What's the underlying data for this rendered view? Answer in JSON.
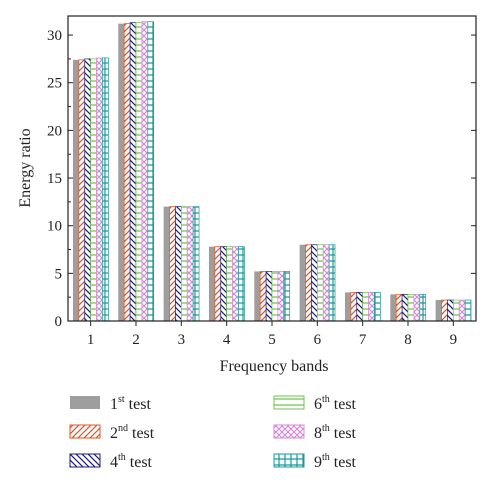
{
  "chart_data": {
    "type": "bar",
    "xlabel": "Frequency bands",
    "ylabel": "Energy ratio",
    "ylim": [
      0,
      32
    ],
    "yticks": [
      0,
      5,
      10,
      15,
      20,
      25,
      30
    ],
    "categories": [
      "1",
      "2",
      "3",
      "4",
      "5",
      "6",
      "7",
      "8",
      "9"
    ],
    "grid": false,
    "legend_position": "bottom, two columns",
    "series": [
      {
        "name": "1st test",
        "ordinal": "1",
        "suffix": "st",
        "color": "#9e9e9e",
        "pattern": "solid",
        "values": [
          27.4,
          31.2,
          12.0,
          7.8,
          5.2,
          8.0,
          3.0,
          2.8,
          2.2
        ]
      },
      {
        "name": "2nd test",
        "ordinal": "2",
        "suffix": "nd",
        "color": "#e8501e",
        "pattern": "diagonal-forward",
        "values": [
          27.4,
          31.2,
          12.0,
          7.8,
          5.2,
          8.0,
          3.0,
          2.8,
          2.2
        ]
      },
      {
        "name": "4th test",
        "ordinal": "4",
        "suffix": "th",
        "color": "#1c1c7a",
        "pattern": "diagonal-backward",
        "values": [
          27.5,
          31.3,
          12.0,
          7.8,
          5.2,
          8.0,
          3.0,
          2.8,
          2.2
        ]
      },
      {
        "name": "6th test",
        "ordinal": "6",
        "suffix": "th",
        "color": "#6ec04a",
        "pattern": "horizontal",
        "values": [
          27.5,
          31.3,
          12.0,
          7.8,
          5.2,
          8.0,
          3.0,
          2.8,
          2.2
        ]
      },
      {
        "name": "8th test",
        "ordinal": "8",
        "suffix": "th",
        "color": "#d68ad6",
        "pattern": "crosshatch",
        "values": [
          27.6,
          31.4,
          12.0,
          7.8,
          5.2,
          8.0,
          3.0,
          2.8,
          2.2
        ]
      },
      {
        "name": "9th test",
        "ordinal": "9",
        "suffix": "th",
        "color": "#1a9a9a",
        "pattern": "grid",
        "values": [
          27.6,
          31.4,
          12.0,
          7.8,
          5.2,
          8.0,
          3.0,
          2.8,
          2.2
        ]
      }
    ]
  }
}
